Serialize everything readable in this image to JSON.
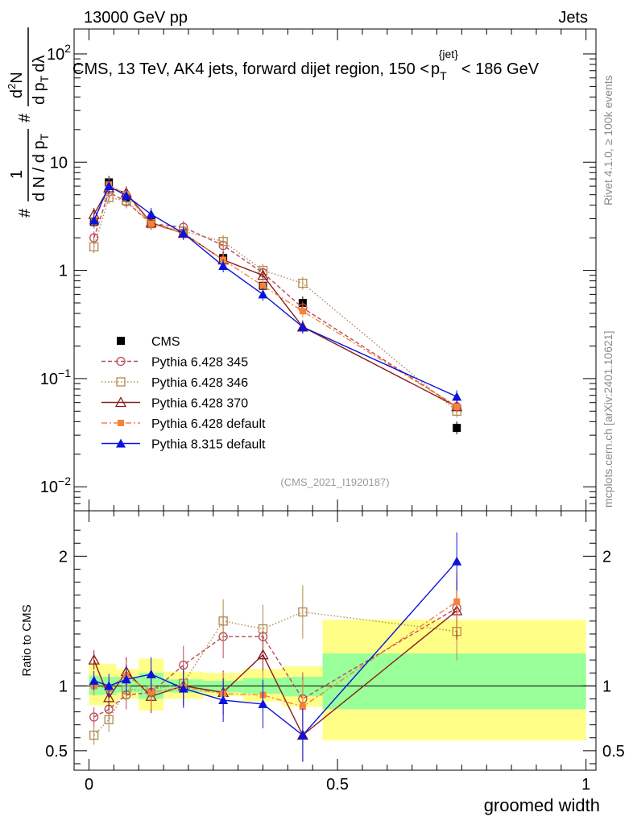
{
  "header": {
    "left": "13000 GeV pp",
    "right": "Jets"
  },
  "side_labels": {
    "rivet": "Rivet 4.1.0, ≥ 100k events",
    "mcplots": "mcplots.cern.ch [arXiv:2401.10621]"
  },
  "chart_data": [
    {
      "type": "scatter",
      "panel": "main",
      "title": "CMS, 13 TeV, AK4 jets, forward dijet region, 150 < p_T^{jet} < 186 GeV",
      "title_parts": {
        "prefix": "CMS, 13 TeV, AK4 jets, forward dijet region, 150 <",
        "p": "p",
        "sub": "T",
        "sup": "{jet}",
        "suffix": "< 186 GeV"
      },
      "ylabel_parts": {
        "hash": "#",
        "one": "1",
        "den": "d N / d p",
        "den_sub": "T",
        "hash2": "#",
        "num2": "d",
        "sup2": "2",
        "num2b": "N",
        "den2": "d p",
        "den2_sub": "T",
        "den2b": "dλ"
      },
      "xlabel": "groomed width",
      "yscale": "log",
      "xlim": [
        -0.03,
        1.02
      ],
      "ylim": [
        0.006,
        170
      ],
      "yticks": [
        {
          "value": 0.01,
          "base": "10",
          "exp": "−2"
        },
        {
          "value": 0.1,
          "base": "10",
          "exp": "−1"
        },
        {
          "value": 1,
          "label": "1"
        },
        {
          "value": 10,
          "label": "10"
        },
        {
          "value": 100,
          "base": "10",
          "exp": "2"
        }
      ],
      "watermark": "(CMS_2021_I1920187)",
      "x": [
        0.01,
        0.04,
        0.075,
        0.125,
        0.19,
        0.27,
        0.35,
        0.43,
        0.74
      ],
      "legend": [
        "CMS",
        "Pythia 6.428 345",
        "Pythia 6.428 346",
        "Pythia 6.428 370",
        "Pythia 6.428 default",
        "Pythia 8.315 default"
      ],
      "series": [
        {
          "name": "CMS",
          "color": "#000000",
          "marker": "square-filled",
          "values": [
            2.8,
            6.5,
            4.7,
            2.8,
            2.2,
            1.3,
            0.72,
            0.5,
            0.035
          ]
        },
        {
          "name": "Pythia 6.428 345",
          "color": "#b94a55",
          "marker": "circle-open",
          "dash": "5,3",
          "values": [
            2.0,
            5.3,
            4.3,
            2.7,
            2.5,
            1.7,
            0.95,
            0.45,
            0.055
          ]
        },
        {
          "name": "Pythia 6.428 346",
          "color": "#b08a4c",
          "marker": "square-open",
          "dash": "1.5,2.5",
          "values": [
            1.65,
            4.7,
            4.4,
            2.7,
            2.3,
            1.85,
            1.0,
            0.76,
            0.05
          ]
        },
        {
          "name": "Pythia 6.428 370",
          "color": "#8b1e1e",
          "marker": "triangle-open",
          "values": [
            3.3,
            5.8,
            5.2,
            2.75,
            2.2,
            1.25,
            0.9,
            0.3,
            0.055
          ]
        },
        {
          "name": "Pythia 6.428 default",
          "color": "#f5823a",
          "marker": "square-filled-small",
          "dash": "7,3,2,3",
          "values": [
            2.8,
            6.2,
            5.0,
            2.7,
            2.2,
            1.25,
            0.72,
            0.42,
            0.055
          ]
        },
        {
          "name": "Pythia 8.315 default",
          "color": "#0a14dc",
          "marker": "triangle-filled",
          "values": [
            2.9,
            6.0,
            4.9,
            3.3,
            2.2,
            1.1,
            0.6,
            0.3,
            0.068
          ]
        }
      ]
    },
    {
      "type": "scatter",
      "panel": "ratio",
      "ylabel": "Ratio to CMS",
      "xlabel": "groomed width",
      "xlim": [
        -0.03,
        1.02
      ],
      "ylim": [
        0.35,
        2.35
      ],
      "yticks": [
        0.5,
        1,
        2
      ],
      "xticks": [
        0,
        0.5,
        1
      ],
      "bands": [
        {
          "x0": 0.0,
          "x1": 0.025,
          "inner": [
            0.93,
            1.08
          ],
          "outer": [
            0.85,
            1.18
          ]
        },
        {
          "x0": 0.025,
          "x1": 0.055,
          "inner": [
            0.93,
            1.07
          ],
          "outer": [
            0.85,
            1.17
          ]
        },
        {
          "x0": 0.055,
          "x1": 0.1,
          "inner": [
            0.95,
            1.07
          ],
          "outer": [
            0.9,
            1.13
          ]
        },
        {
          "x0": 0.1,
          "x1": 0.15,
          "inner": [
            0.9,
            1.1
          ],
          "outer": [
            0.81,
            1.21
          ]
        },
        {
          "x0": 0.15,
          "x1": 0.23,
          "inner": [
            0.95,
            1.05
          ],
          "outer": [
            0.9,
            1.11
          ]
        },
        {
          "x0": 0.23,
          "x1": 0.31,
          "inner": [
            0.95,
            1.04
          ],
          "outer": [
            0.92,
            1.1
          ]
        },
        {
          "x0": 0.31,
          "x1": 0.39,
          "inner": [
            0.94,
            1.06
          ],
          "outer": [
            0.88,
            1.13
          ]
        },
        {
          "x0": 0.39,
          "x1": 0.47,
          "inner": [
            0.92,
            1.07
          ],
          "outer": [
            0.84,
            1.15
          ]
        },
        {
          "x0": 0.47,
          "x1": 1.0,
          "inner": [
            0.82,
            1.25
          ],
          "outer": [
            0.58,
            1.51
          ]
        }
      ],
      "series": [
        {
          "name": "Pythia 6.428 345",
          "values": [
            0.76,
            0.82,
            0.93,
            0.95,
            1.16,
            1.38,
            1.38,
            0.9,
            1.6
          ]
        },
        {
          "name": "Pythia 6.428 346",
          "values": [
            0.62,
            0.74,
            0.97,
            0.97,
            1.02,
            1.5,
            1.44,
            1.57,
            1.42
          ]
        },
        {
          "name": "Pythia 6.428 370",
          "values": [
            1.2,
            0.91,
            1.11,
            0.92,
            1.0,
            0.95,
            1.24,
            0.62,
            1.58
          ]
        },
        {
          "name": "Pythia 6.428 default",
          "values": [
            1.0,
            0.98,
            1.08,
            0.95,
            0.99,
            0.94,
            0.93,
            0.84,
            1.65
          ]
        },
        {
          "name": "Pythia 8.315 default",
          "values": [
            1.04,
            1.0,
            1.05,
            1.09,
            0.98,
            0.89,
            0.86,
            0.62,
            1.96
          ]
        }
      ]
    }
  ]
}
